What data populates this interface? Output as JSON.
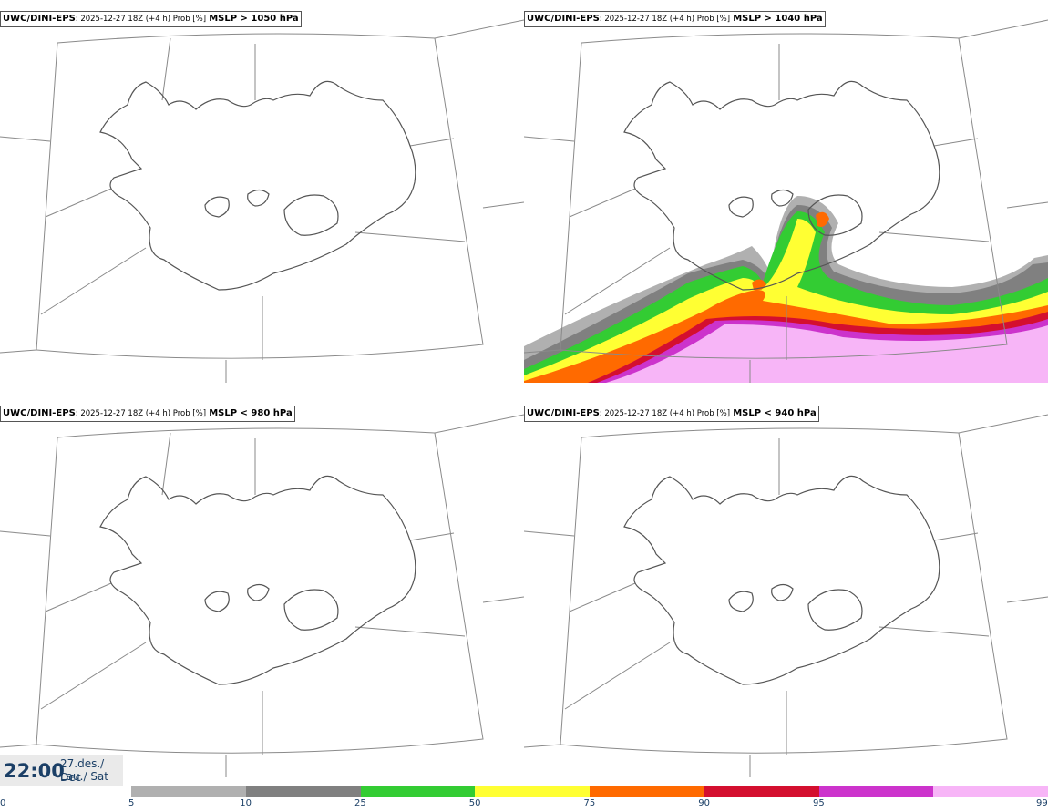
{
  "panels": [
    {
      "model": "UWC/DINI-EPS",
      "meta": ": 2025-12-27 18Z (+4 h) Prob [%]",
      "threshold": "MSLP > 1050 hPa"
    },
    {
      "model": "UWC/DINI-EPS",
      "meta": ": 2025-12-27 18Z (+4 h) Prob [%]",
      "threshold": "MSLP > 1040 hPa"
    },
    {
      "model": "UWC/DINI-EPS",
      "meta": ": 2025-12-27 18Z (+4 h) Prob [%]",
      "threshold": "MSLP < 980 hPa"
    },
    {
      "model": "UWC/DINI-EPS",
      "meta": ": 2025-12-27 18Z (+4 h) Prob [%]",
      "threshold": "MSLP < 940 hPa"
    }
  ],
  "valid_time": {
    "time": "22:00",
    "date": "27.des./ Dec",
    "day": "Lau./ Sat"
  },
  "legend": {
    "ticks": [
      "0",
      "5",
      "10",
      "25",
      "50",
      "75",
      "90",
      "95",
      "99"
    ],
    "colors": [
      "#b0b0b0",
      "#808080",
      "#33cc33",
      "#ffff33",
      "#ff6a00",
      "#d40f2f",
      "#cc33cc",
      "#f7b5f7"
    ]
  }
}
